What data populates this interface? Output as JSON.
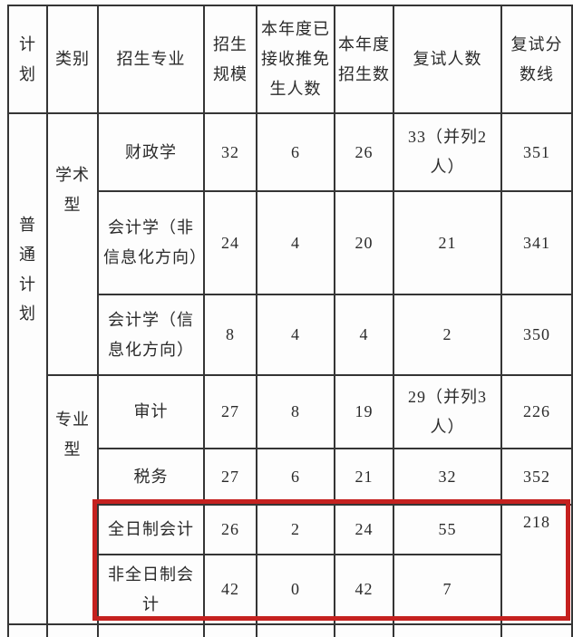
{
  "table": {
    "headers": {
      "plan": "计划",
      "category": "类别",
      "major": "招生专业",
      "scale": "招生规模",
      "tuimian": "本年度已接收推免生人数",
      "admitted": "本年度招生数",
      "interviewed": "复试人数",
      "cutoff": "复试分数线"
    },
    "plan_group": "普通计划",
    "category_academic": "学术型",
    "category_professional": "专业型",
    "rows": [
      {
        "major": "财政学",
        "scale": "32",
        "tuimian": "6",
        "admitted": "26",
        "interviewed": "33（并列2人）",
        "cutoff": "351"
      },
      {
        "major": "会计学（非信息化方向）",
        "scale": "24",
        "tuimian": "4",
        "admitted": "20",
        "interviewed": "21",
        "cutoff": "341"
      },
      {
        "major": "会计学（信息化方向）",
        "scale": "8",
        "tuimian": "4",
        "admitted": "4",
        "interviewed": "2",
        "cutoff": "350"
      },
      {
        "major": "审计",
        "scale": "27",
        "tuimian": "8",
        "admitted": "19",
        "interviewed": "29（并列3人）",
        "cutoff": "226"
      },
      {
        "major": "税务",
        "scale": "27",
        "tuimian": "6",
        "admitted": "21",
        "interviewed": "32",
        "cutoff": "352"
      },
      {
        "major": "全日制会计",
        "scale": "26",
        "tuimian": "2",
        "admitted": "24",
        "interviewed": "55",
        "cutoff": "218"
      },
      {
        "major": "非全日制会计",
        "scale": "42",
        "tuimian": "0",
        "admitted": "42",
        "interviewed": "7",
        "cutoff": ""
      }
    ]
  },
  "highlight": {
    "color": "#c5211f",
    "highlighted_rows": [
      "全日制会计",
      "非全日制会计"
    ]
  }
}
